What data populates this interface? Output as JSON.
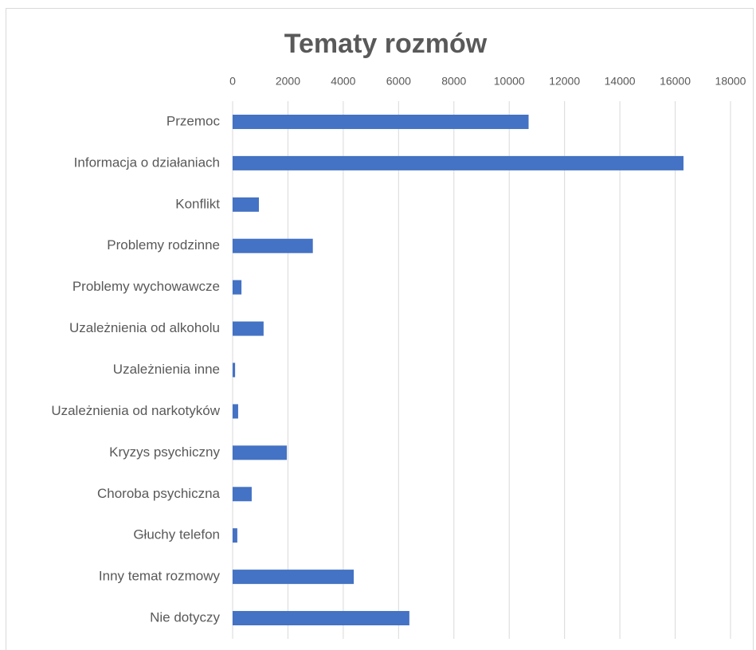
{
  "chart_data": {
    "type": "bar",
    "orientation": "horizontal",
    "title": "Tematy rozmów",
    "categories": [
      "Przemoc",
      "Informacja o działaniach",
      "Konflikt",
      "Problemy rodzinne",
      "Problemy wychowawcze",
      "Uzależnienia od alkoholu",
      "Uzależnienia inne",
      "Uzależnienia od narkotyków",
      "Kryzys psychiczny",
      "Choroba psychiczna",
      "Głuchy telefon",
      "Inny temat rozmowy",
      "Nie dotyczy"
    ],
    "values": [
      10700,
      16300,
      950,
      2900,
      320,
      1120,
      90,
      200,
      1960,
      690,
      170,
      4380,
      6390
    ],
    "color": "#4472c4",
    "xlim": [
      0,
      18000
    ],
    "xticks": [
      0,
      2000,
      4000,
      6000,
      8000,
      10000,
      12000,
      14000,
      16000,
      18000
    ],
    "grid": true
  }
}
